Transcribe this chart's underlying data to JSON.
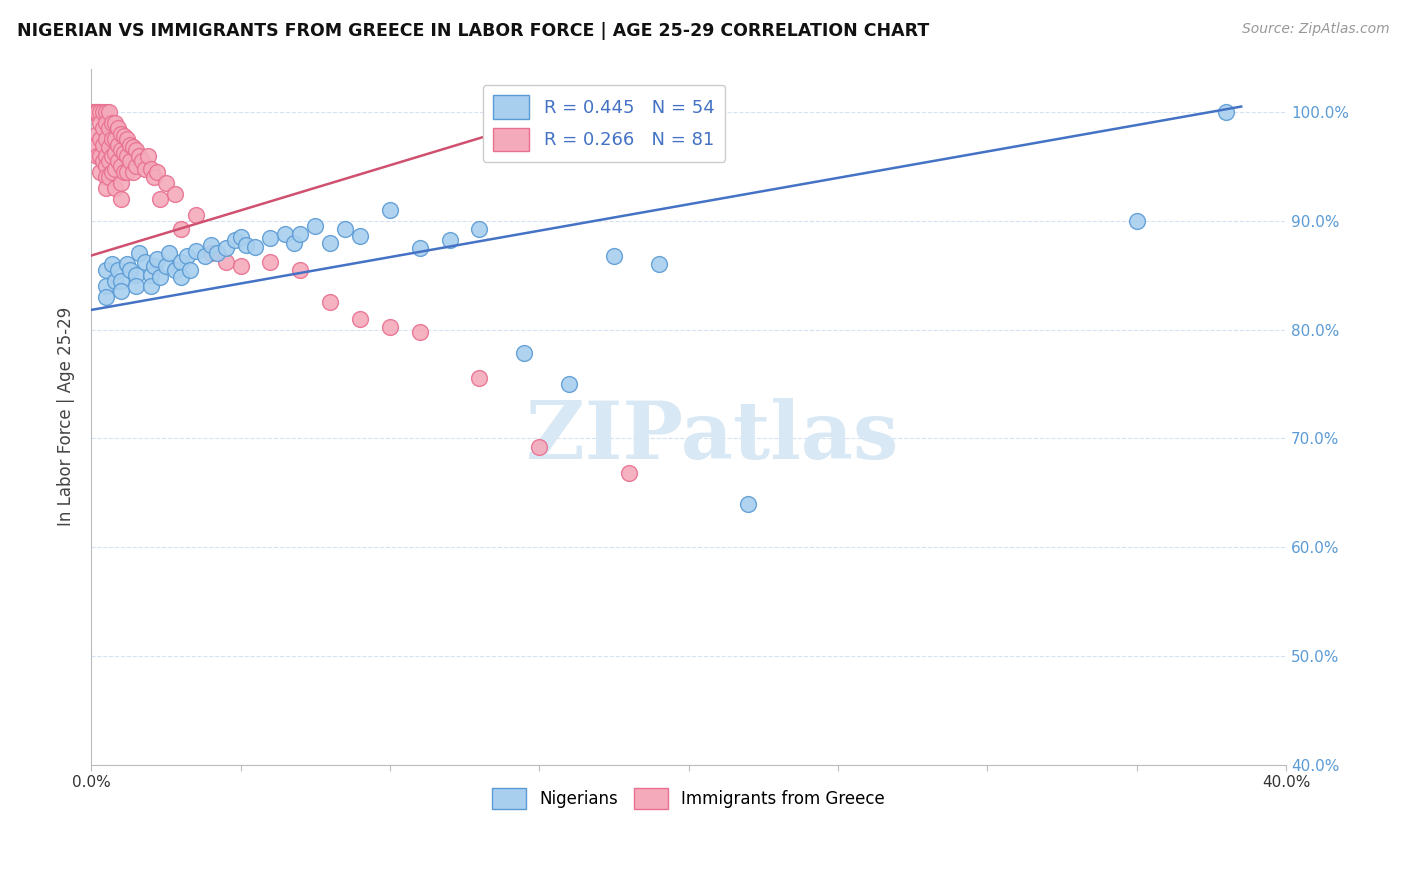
{
  "title": "NIGERIAN VS IMMIGRANTS FROM GREECE IN LABOR FORCE | AGE 25-29 CORRELATION CHART",
  "source": "Source: ZipAtlas.com",
  "ylabel": "In Labor Force | Age 25-29",
  "xlim": [
    0.0,
    0.4
  ],
  "ylim": [
    0.4,
    1.04
  ],
  "blue_R": 0.445,
  "blue_N": 54,
  "pink_R": 0.266,
  "pink_N": 81,
  "blue_color": "#A8CFEE",
  "pink_color": "#F4AABB",
  "blue_edge_color": "#5B9BD5",
  "pink_edge_color": "#E87090",
  "blue_line_color": "#4472C4",
  "pink_line_color": "#D05070",
  "watermark_color": "#D8E8F5",
  "grid_color": "#D0DFF0",
  "right_tick_color": "#5B9BD5",
  "nigerians_x": [
    0.005,
    0.005,
    0.005,
    0.007,
    0.008,
    0.009,
    0.01,
    0.01,
    0.012,
    0.013,
    0.015,
    0.015,
    0.016,
    0.018,
    0.02,
    0.02,
    0.021,
    0.022,
    0.023,
    0.025,
    0.026,
    0.028,
    0.03,
    0.03,
    0.032,
    0.033,
    0.035,
    0.038,
    0.04,
    0.042,
    0.045,
    0.048,
    0.05,
    0.052,
    0.055,
    0.06,
    0.065,
    0.068,
    0.07,
    0.075,
    0.08,
    0.085,
    0.09,
    0.1,
    0.11,
    0.12,
    0.13,
    0.145,
    0.16,
    0.175,
    0.19,
    0.22,
    0.35,
    0.38
  ],
  "nigerians_y": [
    0.84,
    0.855,
    0.83,
    0.86,
    0.845,
    0.855,
    0.845,
    0.835,
    0.86,
    0.855,
    0.85,
    0.84,
    0.87,
    0.862,
    0.85,
    0.84,
    0.858,
    0.865,
    0.848,
    0.858,
    0.87,
    0.855,
    0.862,
    0.848,
    0.868,
    0.855,
    0.872,
    0.868,
    0.878,
    0.87,
    0.875,
    0.882,
    0.885,
    0.878,
    0.876,
    0.884,
    0.888,
    0.88,
    0.888,
    0.895,
    0.88,
    0.892,
    0.886,
    0.91,
    0.875,
    0.882,
    0.892,
    0.778,
    0.75,
    0.868,
    0.86,
    0.64,
    0.9,
    1.0
  ],
  "greece_x": [
    0.001,
    0.001,
    0.001,
    0.002,
    0.002,
    0.002,
    0.002,
    0.003,
    0.003,
    0.003,
    0.003,
    0.003,
    0.004,
    0.004,
    0.004,
    0.004,
    0.005,
    0.005,
    0.005,
    0.005,
    0.005,
    0.005,
    0.005,
    0.006,
    0.006,
    0.006,
    0.006,
    0.006,
    0.007,
    0.007,
    0.007,
    0.007,
    0.008,
    0.008,
    0.008,
    0.008,
    0.008,
    0.009,
    0.009,
    0.009,
    0.01,
    0.01,
    0.01,
    0.01,
    0.01,
    0.011,
    0.011,
    0.011,
    0.012,
    0.012,
    0.012,
    0.013,
    0.013,
    0.014,
    0.014,
    0.015,
    0.015,
    0.016,
    0.017,
    0.018,
    0.019,
    0.02,
    0.021,
    0.022,
    0.023,
    0.025,
    0.028,
    0.03,
    0.035,
    0.04,
    0.045,
    0.05,
    0.06,
    0.07,
    0.08,
    0.09,
    0.1,
    0.11,
    0.13,
    0.15,
    0.18
  ],
  "greece_y": [
    1.0,
    1.0,
    0.97,
    1.0,
    1.0,
    0.98,
    0.96,
    1.0,
    0.99,
    0.975,
    0.96,
    0.945,
    1.0,
    0.985,
    0.97,
    0.955,
    1.0,
    0.99,
    0.975,
    0.96,
    0.95,
    0.94,
    0.93,
    1.0,
    0.985,
    0.968,
    0.955,
    0.94,
    0.99,
    0.975,
    0.96,
    0.945,
    0.99,
    0.975,
    0.962,
    0.948,
    0.93,
    0.985,
    0.97,
    0.955,
    0.98,
    0.965,
    0.95,
    0.935,
    0.92,
    0.978,
    0.962,
    0.945,
    0.975,
    0.96,
    0.945,
    0.97,
    0.955,
    0.968,
    0.945,
    0.965,
    0.95,
    0.96,
    0.955,
    0.948,
    0.96,
    0.948,
    0.94,
    0.945,
    0.92,
    0.935,
    0.925,
    0.892,
    0.905,
    0.87,
    0.862,
    0.858,
    0.862,
    0.855,
    0.825,
    0.81,
    0.802,
    0.798,
    0.755,
    0.692,
    0.668
  ],
  "blue_trend_x": [
    0.0,
    0.385
  ],
  "blue_trend_y": [
    0.818,
    1.005
  ],
  "pink_trend_x": [
    0.0,
    0.165
  ],
  "pink_trend_y": [
    0.868,
    1.005
  ]
}
